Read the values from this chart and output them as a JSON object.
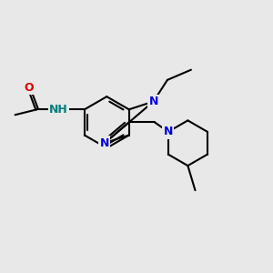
{
  "bg_color": "#e8e8e8",
  "bond_color": "#000000",
  "N_color": "#0000dd",
  "O_color": "#dd0000",
  "NH_color": "#008080",
  "lw": 1.5,
  "fs": 9.0,
  "xlim": [
    0,
    10
  ],
  "ylim": [
    0,
    10
  ]
}
